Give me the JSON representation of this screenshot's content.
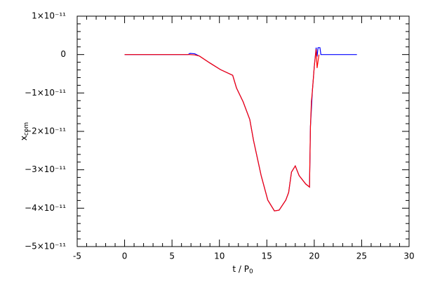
{
  "chart_data": {
    "type": "line",
    "xlabel": {
      "text": "t / P",
      "subscript": "0"
    },
    "ylabel": {
      "text": "x",
      "subscript": "com"
    },
    "xlim": [
      -5,
      30
    ],
    "ylim": [
      -5e-11,
      1e-11
    ],
    "xticks": [
      -5,
      0,
      5,
      10,
      15,
      20,
      25,
      30
    ],
    "yticks": [
      {
        "value": -5e-11,
        "label": "−5×10⁻¹¹"
      },
      {
        "value": -4e-11,
        "label": "−4×10⁻¹¹"
      },
      {
        "value": -3e-11,
        "label": "−3×10⁻¹¹"
      },
      {
        "value": -2e-11,
        "label": "−2×10⁻¹¹"
      },
      {
        "value": -1e-11,
        "label": "−1×10⁻¹¹"
      },
      0,
      {
        "value": 1e-11,
        "label": "1×10⁻¹¹"
      }
    ],
    "series": [
      {
        "color": "#0000ff",
        "x": [
          0,
          6.7,
          6.9,
          7.4,
          7.9,
          9.0,
          10.1,
          11.4,
          11.8,
          12.5,
          13.2,
          13.6,
          14.4,
          15.1,
          15.8,
          16.3,
          17.0,
          17.3,
          17.6,
          18.0,
          18.4,
          19.1,
          19.5,
          19.6,
          19.8,
          20.0,
          20.2,
          20.3,
          20.4,
          20.6,
          20.7,
          21.0,
          24.5
        ],
        "values": [
          0,
          0,
          3e-13,
          2e-13,
          -4e-13,
          -2.2e-12,
          -3.9e-12,
          -5.4e-12,
          -8.7e-12,
          -1.23e-11,
          -1.69e-11,
          -2.24e-11,
          -3.15e-11,
          -3.79e-11,
          -4.07e-11,
          -4.05e-11,
          -3.79e-11,
          -3.59e-11,
          -3.06e-11,
          -2.9e-11,
          -3.15e-11,
          -3.37e-11,
          -3.45e-11,
          -1.87e-11,
          -9.6e-12,
          -3.2e-12,
          1.8e-12,
          -5e-13,
          1.8e-12,
          1.8e-12,
          0,
          0,
          0
        ]
      },
      {
        "color": "#ff0000",
        "x": [
          0,
          6.8,
          7.4,
          7.9,
          9.0,
          10.1,
          11.4,
          11.8,
          12.5,
          13.2,
          13.6,
          14.4,
          15.1,
          15.8,
          16.3,
          17.0,
          17.3,
          17.6,
          18.0,
          18.4,
          19.1,
          19.5,
          19.6,
          19.7,
          19.8,
          20.0,
          20.2,
          20.3,
          20.5
        ],
        "values": [
          0,
          0,
          -1e-13,
          -4e-13,
          -2.2e-12,
          -3.9e-12,
          -5.4e-12,
          -8.7e-12,
          -1.23e-11,
          -1.69e-11,
          -2.24e-11,
          -3.15e-11,
          -3.79e-11,
          -4.07e-11,
          -4.05e-11,
          -3.79e-11,
          -3.59e-11,
          -3.06e-11,
          -2.9e-11,
          -3.15e-11,
          -3.37e-11,
          -3.45e-11,
          -1.87e-11,
          -1.22e-11,
          -9.6e-12,
          -3.2e-12,
          1.4e-12,
          -3.5e-12,
          0
        ]
      }
    ]
  }
}
